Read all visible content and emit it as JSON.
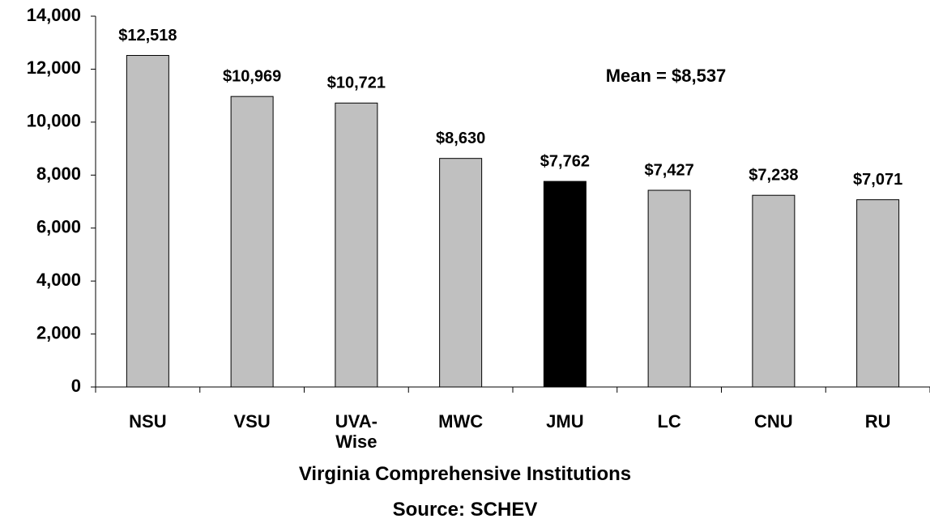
{
  "chart_data": {
    "type": "bar",
    "categories": [
      "NSU",
      "VSU",
      "UVA-Wise",
      "MWC",
      "JMU",
      "LC",
      "CNU",
      "RU"
    ],
    "values": [
      12518,
      10969,
      10721,
      8630,
      7762,
      7427,
      7238,
      7071
    ],
    "value_labels": [
      "$12,518",
      "$10,969",
      "$10,721",
      "$8,630",
      "$7,762",
      "$7,427",
      "$7,238",
      "$7,071"
    ],
    "colors": [
      "#c0c0c0",
      "#c0c0c0",
      "#c0c0c0",
      "#c0c0c0",
      "#000000",
      "#c0c0c0",
      "#c0c0c0",
      "#c0c0c0"
    ],
    "ylim": [
      0,
      14000
    ],
    "yticks": [
      0,
      {
        "value": 2000,
        "label": "2,000"
      },
      {
        "value": 4000,
        "label": "4,000"
      },
      {
        "value": 6000,
        "label": "6,000"
      },
      {
        "value": 8000,
        "label": "8,000"
      },
      {
        "value": 10000,
        "label": "10,000"
      },
      {
        "value": 12000,
        "label": "12,000"
      },
      {
        "value": 14000,
        "label": "14,000"
      }
    ],
    "annotation": "Mean = $8,537",
    "xlabel": "Virginia Comprehensive Institutions",
    "source": "Source: SCHEV",
    "grid": false
  }
}
